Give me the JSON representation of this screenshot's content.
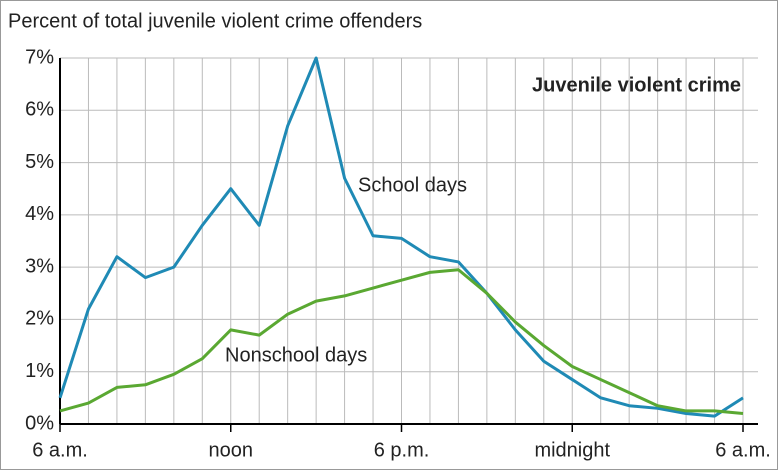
{
  "chart_data": {
    "type": "line",
    "title": "Percent of total juvenile violent crime offenders",
    "annotations": [
      "Juvenile violent crime",
      "School days",
      "Nonschool days"
    ],
    "x": [
      0,
      1,
      2,
      3,
      4,
      5,
      6,
      7,
      8,
      9,
      10,
      11,
      12,
      13,
      14,
      15,
      16,
      17,
      18,
      19,
      20,
      21,
      22,
      23,
      24
    ],
    "series": [
      {
        "name": "School days",
        "color": "#1f8ab5",
        "values": [
          0.5,
          2.2,
          3.2,
          2.8,
          3.0,
          3.8,
          4.5,
          3.8,
          5.7,
          7.0,
          4.7,
          3.6,
          3.55,
          3.2,
          3.1,
          2.5,
          1.8,
          1.2,
          0.85,
          0.5,
          0.35,
          0.3,
          0.2,
          0.15,
          0.5
        ]
      },
      {
        "name": "Nonschool days",
        "color": "#5aa832",
        "values": [
          0.25,
          0.4,
          0.7,
          0.75,
          0.95,
          1.25,
          1.8,
          1.7,
          2.1,
          2.35,
          2.45,
          2.6,
          2.75,
          2.9,
          2.95,
          2.5,
          1.95,
          1.5,
          1.1,
          0.85,
          0.6,
          0.35,
          0.25,
          0.25,
          0.2
        ]
      }
    ],
    "xlim": [
      0,
      24
    ],
    "xticks": [
      {
        "value": 0,
        "label": "6 a.m."
      },
      {
        "value": 6,
        "label": "noon"
      },
      {
        "value": 12,
        "label": "6 p.m."
      },
      {
        "value": 18,
        "label": "midnight"
      },
      {
        "value": 24,
        "label": "6 a.m."
      }
    ],
    "x_minor_ticks": [
      0,
      1,
      2,
      3,
      4,
      5,
      6,
      7,
      8,
      9,
      10,
      11,
      12,
      13,
      14,
      15,
      16,
      17,
      18,
      19,
      20,
      21,
      22,
      23,
      24
    ],
    "ylim": [
      0,
      7
    ],
    "yticks": [
      {
        "value": 0,
        "label": "0%"
      },
      {
        "value": 1,
        "label": "1%"
      },
      {
        "value": 2,
        "label": "2%"
      },
      {
        "value": 3,
        "label": "3%"
      },
      {
        "value": 4,
        "label": "4%"
      },
      {
        "value": 5,
        "label": "5%"
      },
      {
        "value": 6,
        "label": "6%"
      },
      {
        "value": 7,
        "label": "7%"
      }
    ],
    "grid": true
  }
}
